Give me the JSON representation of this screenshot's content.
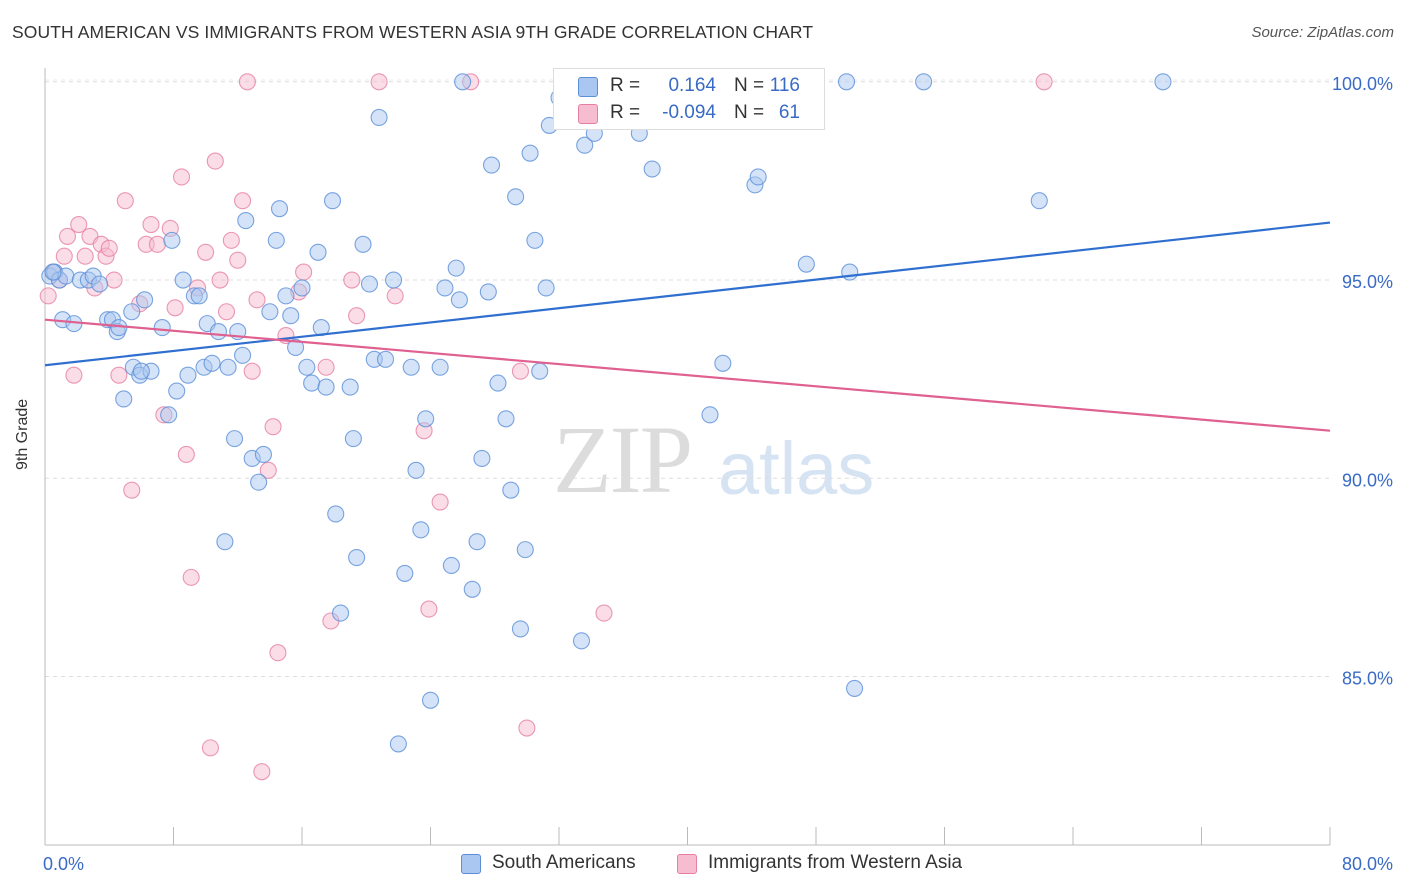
{
  "title": "SOUTH AMERICAN VS IMMIGRANTS FROM WESTERN ASIA 9TH GRADE CORRELATION CHART",
  "source": "Source: ZipAtlas.com",
  "watermark": {
    "zip": "ZIP",
    "atlas": "atlas"
  },
  "legend_top": [
    {
      "r_label": "R =",
      "r_value": "0.164",
      "n_label": "N =",
      "n_value": "116"
    },
    {
      "r_label": "R =",
      "r_value": "-0.094",
      "n_label": "N =",
      "n_value": "61"
    }
  ],
  "colors": {
    "blue_fill": "#a9c7f0",
    "blue_stroke": "#5b8fd8",
    "blue_line": "#2f6fcf",
    "pink_fill": "#f6bcd0",
    "pink_stroke": "#e67fa3",
    "pink_line": "#e0608f",
    "tick_text": "#3a6bc4",
    "grid": "#dddddd"
  },
  "chart_data": {
    "type": "scatter",
    "title": "SOUTH AMERICAN VS IMMIGRANTS FROM WESTERN ASIA 9TH GRADE CORRELATION CHART",
    "xlabel": "",
    "ylabel": "9th Grade",
    "xlim": [
      0,
      80
    ],
    "ylim": [
      80.75,
      100.6
    ],
    "x_tick_labels": [
      "0.0%",
      "80.0%"
    ],
    "y_ticks": [
      85,
      90,
      95,
      100
    ],
    "y_tick_labels": [
      "85.0%",
      "90.0%",
      "95.0%",
      "100.0%"
    ],
    "grid": true,
    "legend_position": "bottom",
    "series": [
      {
        "name": "South Americans",
        "r": 0.164,
        "n": 116,
        "trend": [
          [
            0,
            92.85
          ],
          [
            80,
            96.45
          ]
        ],
        "points": [
          [
            0.3,
            95.1
          ],
          [
            0.6,
            95.2
          ],
          [
            0.9,
            95.0
          ],
          [
            1.1,
            94.0
          ],
          [
            1.3,
            95.1
          ],
          [
            1.8,
            93.9
          ],
          [
            2.2,
            95.0
          ],
          [
            2.7,
            95.0
          ],
          [
            3.0,
            95.1
          ],
          [
            3.4,
            94.9
          ],
          [
            3.9,
            94.0
          ],
          [
            4.2,
            94.0
          ],
          [
            4.5,
            93.7
          ],
          [
            4.6,
            93.8
          ],
          [
            4.9,
            92.0
          ],
          [
            5.4,
            94.2
          ],
          [
            5.5,
            92.8
          ],
          [
            5.9,
            92.6
          ],
          [
            6.2,
            94.5
          ],
          [
            6.6,
            92.7
          ],
          [
            7.3,
            93.8
          ],
          [
            7.7,
            91.6
          ],
          [
            7.9,
            96.0
          ],
          [
            8.2,
            92.2
          ],
          [
            8.6,
            95.0
          ],
          [
            8.9,
            92.6
          ],
          [
            9.3,
            94.6
          ],
          [
            9.6,
            94.6
          ],
          [
            9.9,
            92.8
          ],
          [
            10.1,
            93.9
          ],
          [
            10.4,
            92.9
          ],
          [
            10.8,
            93.7
          ],
          [
            11.2,
            88.4
          ],
          [
            11.4,
            92.8
          ],
          [
            11.8,
            91.0
          ],
          [
            12.0,
            93.7
          ],
          [
            12.3,
            93.1
          ],
          [
            12.5,
            96.5
          ],
          [
            12.9,
            90.5
          ],
          [
            13.3,
            89.9
          ],
          [
            13.6,
            90.6
          ],
          [
            14.0,
            94.2
          ],
          [
            14.4,
            96.0
          ],
          [
            14.6,
            96.8
          ],
          [
            15.0,
            94.6
          ],
          [
            15.3,
            94.1
          ],
          [
            15.6,
            93.3
          ],
          [
            16.0,
            94.8
          ],
          [
            16.3,
            92.8
          ],
          [
            16.6,
            92.4
          ],
          [
            17.0,
            95.7
          ],
          [
            17.2,
            93.8
          ],
          [
            17.5,
            92.3
          ],
          [
            17.9,
            97.0
          ],
          [
            18.1,
            89.1
          ],
          [
            18.4,
            86.6
          ],
          [
            19.0,
            92.3
          ],
          [
            19.2,
            91.0
          ],
          [
            19.4,
            88.0
          ],
          [
            19.8,
            95.9
          ],
          [
            20.2,
            94.9
          ],
          [
            20.5,
            93.0
          ],
          [
            20.8,
            99.1
          ],
          [
            21.2,
            93.0
          ],
          [
            21.7,
            95.0
          ],
          [
            22.0,
            83.3
          ],
          [
            22.4,
            87.6
          ],
          [
            22.8,
            92.8
          ],
          [
            23.1,
            90.2
          ],
          [
            23.4,
            88.7
          ],
          [
            23.7,
            91.5
          ],
          [
            24.0,
            84.4
          ],
          [
            24.6,
            92.8
          ],
          [
            24.9,
            94.8
          ],
          [
            25.3,
            87.8
          ],
          [
            25.6,
            95.3
          ],
          [
            25.8,
            94.5
          ],
          [
            26.0,
            100.0
          ],
          [
            26.6,
            87.2
          ],
          [
            26.9,
            88.4
          ],
          [
            27.2,
            90.5
          ],
          [
            27.6,
            94.7
          ],
          [
            27.8,
            97.9
          ],
          [
            28.2,
            92.4
          ],
          [
            28.7,
            91.5
          ],
          [
            29.0,
            89.7
          ],
          [
            29.3,
            97.1
          ],
          [
            29.6,
            86.2
          ],
          [
            29.9,
            88.2
          ],
          [
            30.2,
            98.2
          ],
          [
            30.5,
            96.0
          ],
          [
            30.8,
            92.7
          ],
          [
            31.2,
            94.8
          ],
          [
            31.4,
            98.9
          ],
          [
            32.0,
            99.6
          ],
          [
            33.4,
            85.9
          ],
          [
            33.6,
            98.4
          ],
          [
            34.2,
            98.7
          ],
          [
            35.0,
            100.0
          ],
          [
            37.0,
            98.7
          ],
          [
            37.8,
            97.8
          ],
          [
            39.3,
            99.7
          ],
          [
            40.3,
            100.0
          ],
          [
            41.4,
            91.6
          ],
          [
            42.2,
            92.9
          ],
          [
            44.2,
            97.4
          ],
          [
            44.4,
            97.6
          ],
          [
            47.4,
            95.4
          ],
          [
            49.9,
            100.0
          ],
          [
            50.1,
            95.2
          ],
          [
            50.4,
            84.7
          ],
          [
            54.7,
            100.0
          ],
          [
            61.9,
            97.0
          ],
          [
            69.6,
            100.0
          ],
          [
            0.5,
            95.2
          ],
          [
            6.0,
            92.7
          ]
        ]
      },
      {
        "name": "Immigrants from Western Asia",
        "r": -0.094,
        "n": 61,
        "trend": [
          [
            0,
            94.0
          ],
          [
            80,
            91.2
          ]
        ],
        "points": [
          [
            0.2,
            94.6
          ],
          [
            0.5,
            95.2
          ],
          [
            0.9,
            95.0
          ],
          [
            1.2,
            95.6
          ],
          [
            1.4,
            96.1
          ],
          [
            1.8,
            92.6
          ],
          [
            2.1,
            96.4
          ],
          [
            2.5,
            95.6
          ],
          [
            2.8,
            96.1
          ],
          [
            3.1,
            94.8
          ],
          [
            3.5,
            95.9
          ],
          [
            3.8,
            95.6
          ],
          [
            4.0,
            95.8
          ],
          [
            4.3,
            95.0
          ],
          [
            4.6,
            92.6
          ],
          [
            5.0,
            97.0
          ],
          [
            5.4,
            89.7
          ],
          [
            5.9,
            94.4
          ],
          [
            6.3,
            95.9
          ],
          [
            6.6,
            96.4
          ],
          [
            7.0,
            95.9
          ],
          [
            7.4,
            91.6
          ],
          [
            7.8,
            96.3
          ],
          [
            8.1,
            94.3
          ],
          [
            8.5,
            97.6
          ],
          [
            8.8,
            90.6
          ],
          [
            9.1,
            87.5
          ],
          [
            9.5,
            94.8
          ],
          [
            10.0,
            95.7
          ],
          [
            10.3,
            83.2
          ],
          [
            10.6,
            98.0
          ],
          [
            10.9,
            95.0
          ],
          [
            11.3,
            94.2
          ],
          [
            11.6,
            96.0
          ],
          [
            12.0,
            95.5
          ],
          [
            12.3,
            97.0
          ],
          [
            12.6,
            100.0
          ],
          [
            12.9,
            92.7
          ],
          [
            13.2,
            94.5
          ],
          [
            13.5,
            82.6
          ],
          [
            13.9,
            90.2
          ],
          [
            14.2,
            91.3
          ],
          [
            14.5,
            85.6
          ],
          [
            15.0,
            93.6
          ],
          [
            15.8,
            94.7
          ],
          [
            16.1,
            95.2
          ],
          [
            17.5,
            92.8
          ],
          [
            17.8,
            86.4
          ],
          [
            19.1,
            95.0
          ],
          [
            19.4,
            94.1
          ],
          [
            20.8,
            100.0
          ],
          [
            21.8,
            94.6
          ],
          [
            23.6,
            91.2
          ],
          [
            23.9,
            86.7
          ],
          [
            24.6,
            89.4
          ],
          [
            26.5,
            100.0
          ],
          [
            29.6,
            92.7
          ],
          [
            30.0,
            83.7
          ],
          [
            34.8,
            86.6
          ],
          [
            37.1,
            100.0
          ],
          [
            62.2,
            100.0
          ]
        ]
      }
    ]
  }
}
